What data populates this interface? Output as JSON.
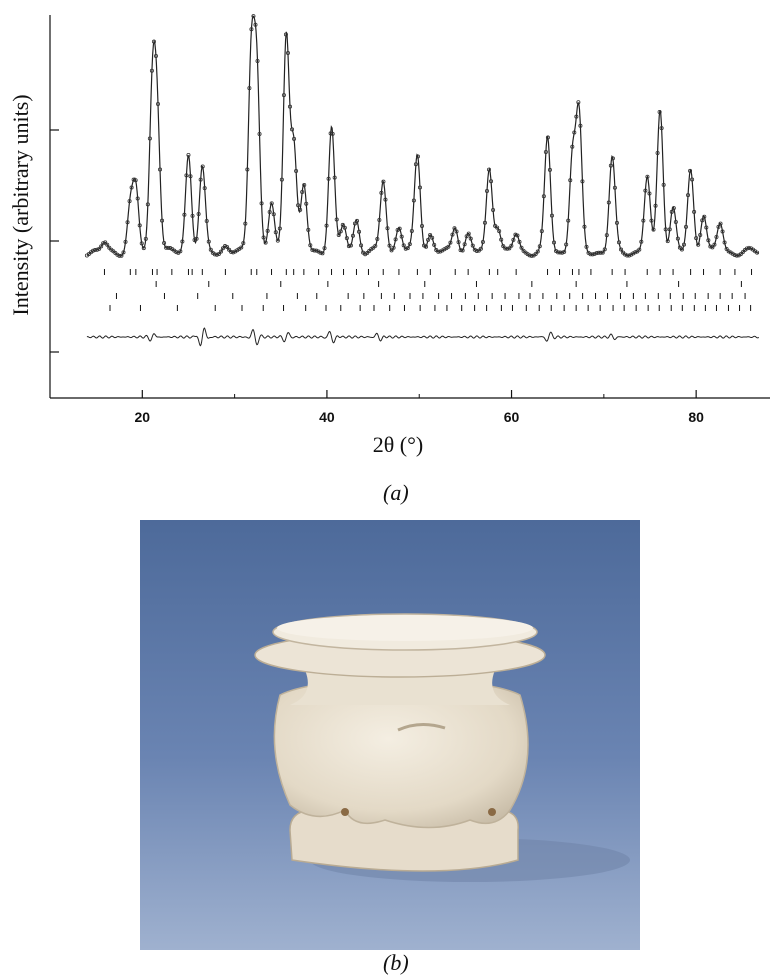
{
  "chart_data": {
    "type": "line",
    "xlabel": "2θ (°)",
    "ylabel": "Intensity (arbitrary units)",
    "xlim": [
      10,
      88
    ],
    "x_ticks": [
      20,
      40,
      60,
      80
    ],
    "y_ticks_labeled": false,
    "grid": false,
    "legend": "none",
    "series": [
      {
        "role": "observed-and-calculated pattern",
        "style": "line with circle markers",
        "peaks": [
          {
            "x": 15.9,
            "h": 0.04
          },
          {
            "x": 18.7,
            "h": 0.2
          },
          {
            "x": 19.3,
            "h": 0.28
          },
          {
            "x": 21.1,
            "h": 0.72
          },
          {
            "x": 21.6,
            "h": 0.6
          },
          {
            "x": 25.0,
            "h": 0.45
          },
          {
            "x": 26.5,
            "h": 0.38
          },
          {
            "x": 29.0,
            "h": 0.03
          },
          {
            "x": 31.8,
            "h": 0.88
          },
          {
            "x": 32.4,
            "h": 0.82
          },
          {
            "x": 34.0,
            "h": 0.22
          },
          {
            "x": 35.6,
            "h": 1.0
          },
          {
            "x": 36.4,
            "h": 0.5
          },
          {
            "x": 37.5,
            "h": 0.3
          },
          {
            "x": 40.5,
            "h": 0.58
          },
          {
            "x": 41.8,
            "h": 0.12
          },
          {
            "x": 43.2,
            "h": 0.15
          },
          {
            "x": 46.1,
            "h": 0.33
          },
          {
            "x": 47.8,
            "h": 0.12
          },
          {
            "x": 49.8,
            "h": 0.45
          },
          {
            "x": 51.2,
            "h": 0.08
          },
          {
            "x": 53.9,
            "h": 0.12
          },
          {
            "x": 55.3,
            "h": 0.08
          },
          {
            "x": 57.6,
            "h": 0.38
          },
          {
            "x": 58.5,
            "h": 0.12
          },
          {
            "x": 60.5,
            "h": 0.08
          },
          {
            "x": 63.9,
            "h": 0.52
          },
          {
            "x": 66.6,
            "h": 0.44
          },
          {
            "x": 67.3,
            "h": 0.62
          },
          {
            "x": 70.9,
            "h": 0.43
          },
          {
            "x": 74.7,
            "h": 0.34
          },
          {
            "x": 76.1,
            "h": 0.66
          },
          {
            "x": 77.5,
            "h": 0.2
          },
          {
            "x": 79.4,
            "h": 0.37
          },
          {
            "x": 80.8,
            "h": 0.18
          },
          {
            "x": 82.6,
            "h": 0.13
          }
        ]
      },
      {
        "role": "difference curve",
        "style": "thin line",
        "peaks": [
          {
            "x": 21.1,
            "h": 0.03
          },
          {
            "x": 26.5,
            "h": 0.08
          },
          {
            "x": 32.2,
            "h": -0.07
          },
          {
            "x": 35.6,
            "h": 0.04
          },
          {
            "x": 40.5,
            "h": -0.05
          },
          {
            "x": 45.6,
            "h": -0.03
          },
          {
            "x": 64.0,
            "h": 0.04
          },
          {
            "x": 71.0,
            "h": -0.02
          }
        ]
      }
    ],
    "reflection_markers": [
      [
        15.9,
        18.7,
        19.3,
        21.1,
        21.6,
        23.2,
        25.0,
        25.4,
        26.5,
        29.0,
        31.8,
        32.4,
        34.0,
        35.6,
        36.4,
        37.5,
        39.1,
        40.5,
        41.8,
        43.2,
        44.5,
        46.1,
        47.8,
        49.8,
        51.2,
        53.9,
        55.3,
        57.6,
        58.5,
        60.5,
        63.9,
        65.2,
        66.6,
        67.3,
        68.6,
        70.9,
        72.3,
        74.7,
        76.1,
        77.5,
        79.4,
        80.8,
        82.6,
        84.2,
        86.0
      ],
      [
        21.5,
        27.2,
        35.0,
        40.1,
        45.6,
        50.6,
        56.2,
        62.2,
        67.0,
        72.5,
        78.1,
        84.9
      ],
      [
        17.2,
        22.4,
        26.0,
        29.8,
        33.5,
        36.8,
        38.9,
        42.3,
        44.0,
        45.9,
        47.3,
        49.0,
        50.4,
        52.1,
        53.5,
        55.0,
        56.4,
        57.9,
        59.3,
        60.8,
        62.0,
        63.4,
        64.9,
        66.3,
        67.7,
        69.1,
        70.4,
        71.8,
        73.2,
        74.5,
        75.9,
        77.2,
        78.6,
        79.9,
        81.3,
        82.6,
        83.9,
        85.3
      ],
      [
        16.5,
        19.8,
        23.8,
        27.9,
        30.8,
        33.1,
        35.3,
        37.7,
        39.9,
        41.5,
        43.6,
        45.1,
        46.8,
        48.4,
        50.1,
        51.7,
        53.0,
        54.6,
        56.0,
        57.3,
        58.9,
        60.1,
        61.6,
        63.0,
        64.3,
        65.7,
        67.0,
        68.3,
        69.6,
        71.0,
        72.2,
        73.5,
        74.8,
        76.0,
        77.3,
        78.5,
        79.8,
        81.0,
        82.2,
        83.5,
        84.7,
        85.9
      ]
    ]
  },
  "panel_labels": {
    "a": "(a)",
    "b": "(b)"
  },
  "photo": {
    "subject": "small white alabaster vessel with lid",
    "colors": {
      "background_top": "#4d6a9a",
      "background_bottom": "#9fb1cf",
      "vessel": "#ece4d6",
      "vessel_shadow": "#c7bba6"
    }
  }
}
